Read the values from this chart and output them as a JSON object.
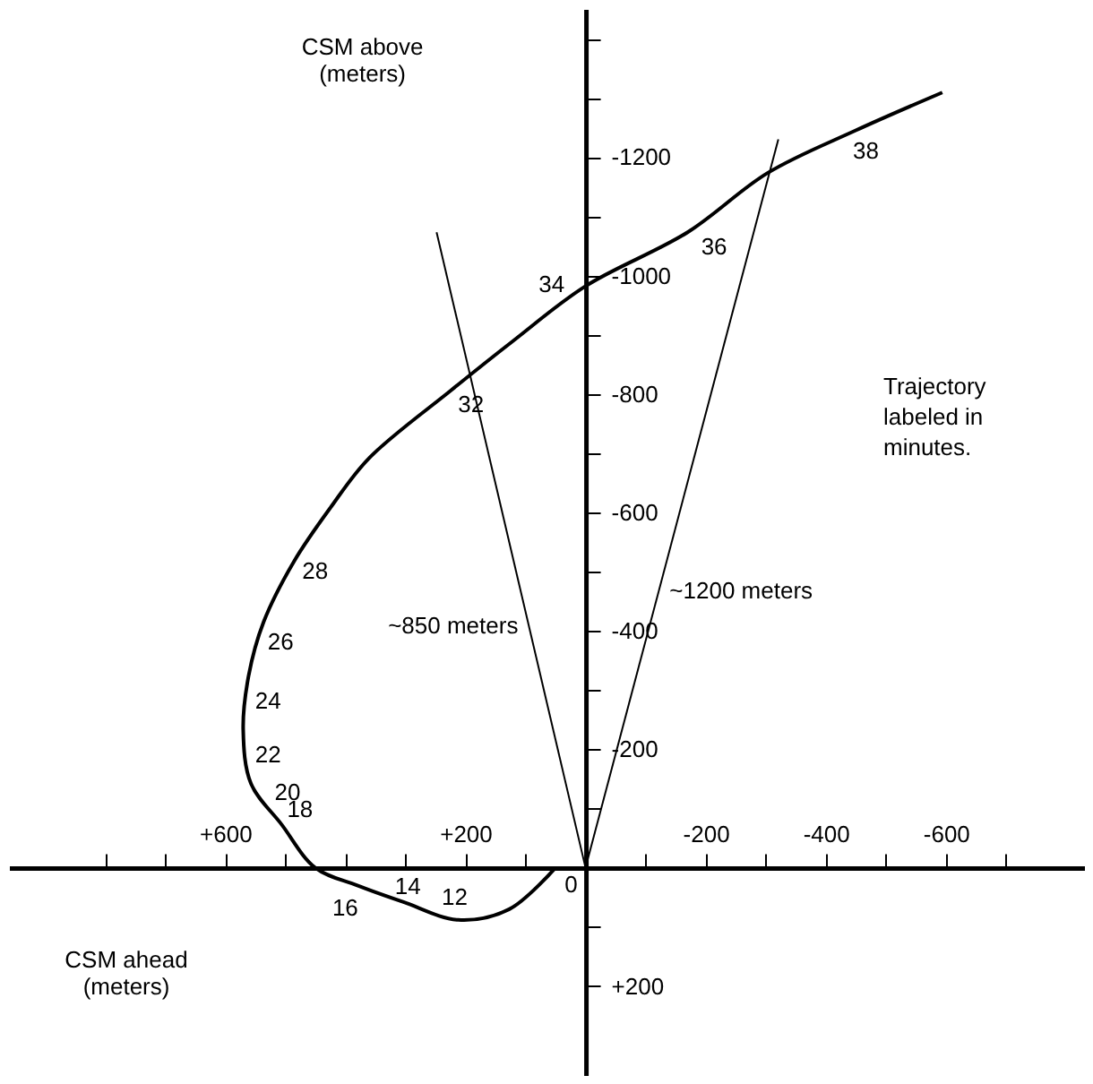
{
  "chart_data": {
    "type": "line",
    "xlabel": "CSM ahead\n(meters)",
    "ylabel": "CSM above\n(meters)",
    "xlim": [
      960,
      -830
    ],
    "ylim": [
      350,
      -1450
    ],
    "xticks": [
      {
        "value": 800,
        "label": null
      },
      {
        "value": 700,
        "label": null
      },
      {
        "value": 600,
        "label": "+600"
      },
      {
        "value": 500,
        "label": null
      },
      {
        "value": 400,
        "label": null
      },
      {
        "value": 300,
        "label": null
      },
      {
        "value": 200,
        "label": "+200"
      },
      {
        "value": 100,
        "label": null
      },
      {
        "value": -100,
        "label": null
      },
      -200,
      {
        "value": -300,
        "label": null
      },
      -400,
      {
        "value": -500,
        "label": null
      },
      -600,
      {
        "value": -700,
        "label": null
      }
    ],
    "yticks": [
      {
        "value": -1400,
        "label": null
      },
      {
        "value": -1300,
        "label": null
      },
      -1200,
      {
        "value": -1100,
        "label": null
      },
      -1000,
      {
        "value": -900,
        "label": null
      },
      -800,
      {
        "value": -700,
        "label": null
      },
      -600,
      {
        "value": -500,
        "label": null
      },
      -400,
      {
        "value": -300,
        "label": null
      },
      -200,
      {
        "value": -100,
        "label": null
      },
      {
        "value": 100,
        "label": null
      },
      {
        "value": 200,
        "label": "+200"
      }
    ],
    "grid": false,
    "marker": "none",
    "line_style": "solid",
    "series": [
      {
        "color": "#000000",
        "x": [
          50,
          127,
          212,
          303,
          380,
          450,
          506,
          557,
          570,
          561,
          536,
          485,
          424,
          361,
          224,
          120,
          0,
          -170,
          -303,
          -450,
          -594
        ],
        "values": [
          0,
          70,
          88,
          58,
          30,
          0,
          -73,
          -142,
          -233,
          -324,
          -415,
          -518,
          -609,
          -691,
          -806,
          -890,
          -982,
          -1073,
          -1173,
          -1245,
          -1309
        ]
      },
      {
        "name": "~850 meters",
        "color": "#000000",
        "x": [
          0,
          248
        ],
        "values": [
          0,
          -1073
        ]
      },
      {
        "name": "~1200 meters",
        "color": "#000000",
        "x": [
          0,
          -321
        ],
        "values": [
          0,
          -1230
        ]
      }
    ],
    "annotations": [
      {
        "text": "0",
        "x": 50,
        "y": 0
      },
      {
        "text": "12",
        "x": 230,
        "y": 88
      },
      {
        "text": "14",
        "x": 309,
        "y": 70
      },
      {
        "text": "16",
        "x": 385,
        "y": 33
      },
      {
        "text": "18",
        "x": 506,
        "y": -73
      },
      {
        "text": "20",
        "x": 527,
        "y": -103
      },
      {
        "text": "22",
        "x": 567,
        "y": -185
      },
      {
        "text": "24",
        "x": 567,
        "y": -285
      },
      {
        "text": "26",
        "x": 545,
        "y": -391
      },
      {
        "text": "28",
        "x": 485,
        "y": -518
      },
      {
        "text": "32",
        "x": 215,
        "y": -812
      },
      {
        "text": "34",
        "x": 33,
        "y": -952
      },
      {
        "text": "36",
        "x": -191,
        "y": -1079
      },
      {
        "text": "38",
        "x": -450,
        "y": -1245
      },
      "Trajectory\nlabeled in\nminutes."
    ]
  }
}
